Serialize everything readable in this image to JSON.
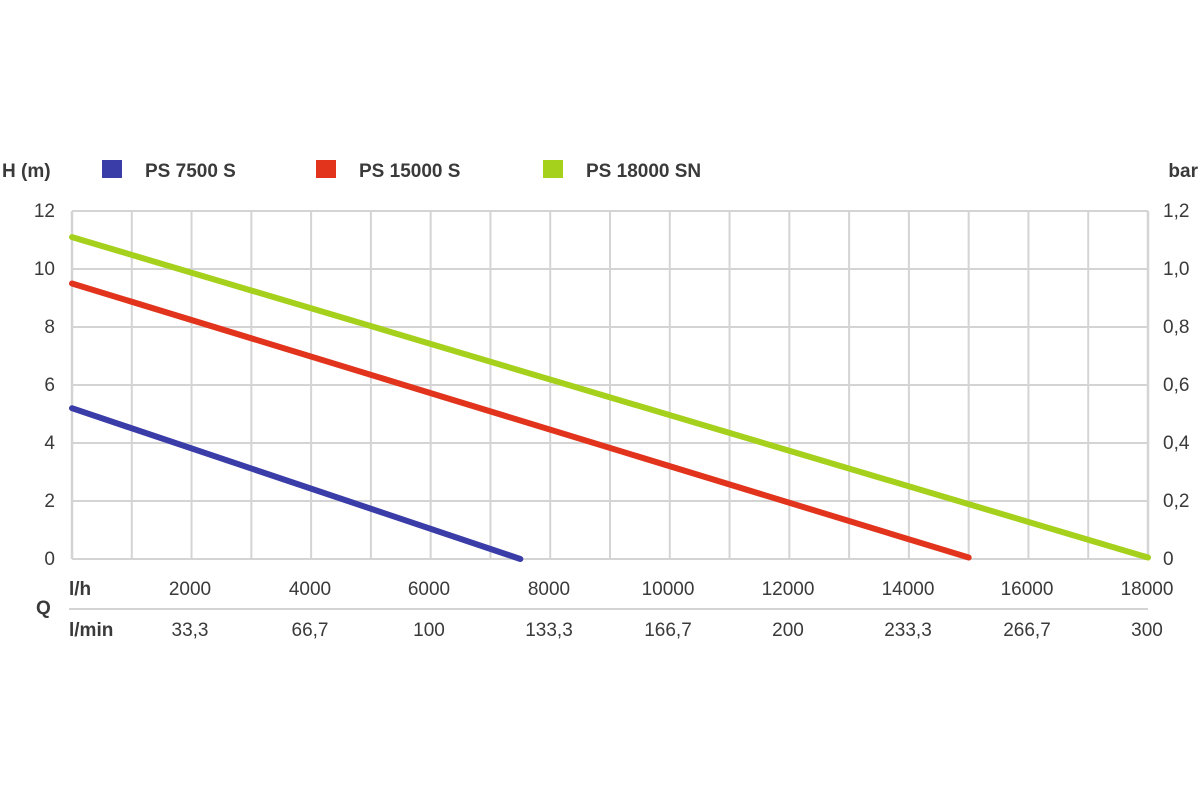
{
  "chart_data": {
    "type": "line",
    "ylabel_left": "H (m)",
    "ylabel_right": "bar",
    "qlabel": "Q",
    "x_row1_unit": "l/h",
    "x_row2_unit": "l/min",
    "xlim": [
      0,
      18000
    ],
    "ylim": [
      0,
      12
    ],
    "x_ticks": [
      "2000",
      "4000",
      "6000",
      "8000",
      "10000",
      "12000",
      "14000",
      "16000",
      "18000"
    ],
    "x_ticks_lmin": [
      "33,3",
      "66,7",
      "100",
      "133,3",
      "166,7",
      "200",
      "233,3",
      "266,7",
      "300"
    ],
    "y_ticks_left": [
      "0",
      "2",
      "4",
      "6",
      "8",
      "10",
      "12"
    ],
    "y_ticks_right": [
      "0",
      "0,2",
      "0,4",
      "0,6",
      "0,8",
      "1,0",
      "1,2"
    ],
    "grid": true,
    "legend_position": "top",
    "series": [
      {
        "name": "PS 7500 S",
        "color": "#3a3ca8",
        "x": [
          0,
          7500
        ],
        "y": [
          5.2,
          0
        ]
      },
      {
        "name": "PS 15000 S",
        "color": "#e2341d",
        "x": [
          0,
          15000
        ],
        "y": [
          9.5,
          0.05
        ]
      },
      {
        "name": "PS 18000 SN",
        "color": "#a5d01c",
        "x": [
          0,
          18000
        ],
        "y": [
          11.1,
          0.05
        ]
      }
    ]
  }
}
